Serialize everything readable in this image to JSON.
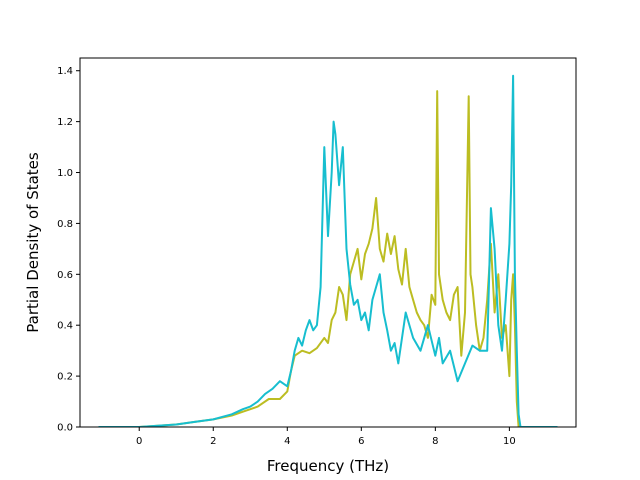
{
  "chart_data": {
    "type": "line",
    "title": "",
    "xlabel": "Frequency (THz)",
    "ylabel": "Partial Density of States",
    "xlim": [
      -1.6,
      11.8
    ],
    "ylim": [
      0,
      1.45
    ],
    "xticks": [
      0,
      2,
      4,
      6,
      8,
      10
    ],
    "yticks": [
      0.0,
      0.2,
      0.4,
      0.6,
      0.8,
      1.0,
      1.2,
      1.4
    ],
    "xtick_labels": [
      "0",
      "2",
      "4",
      "6",
      "8",
      "10"
    ],
    "ytick_labels": [
      "0.0",
      "0.2",
      "0.4",
      "0.6",
      "0.8",
      "1.0",
      "1.2",
      "1.4"
    ],
    "grid": false,
    "legend": "none",
    "series": [
      {
        "color": "#bcbd22",
        "x": [
          -1.1,
          0.0,
          0.5,
          1.0,
          1.5,
          2.0,
          2.5,
          2.8,
          3.0,
          3.2,
          3.5,
          3.8,
          4.0,
          4.1,
          4.2,
          4.4,
          4.6,
          4.8,
          5.0,
          5.1,
          5.2,
          5.3,
          5.4,
          5.5,
          5.6,
          5.7,
          5.8,
          5.9,
          6.0,
          6.1,
          6.2,
          6.3,
          6.4,
          6.5,
          6.6,
          6.7,
          6.8,
          6.9,
          7.0,
          7.1,
          7.2,
          7.3,
          7.4,
          7.5,
          7.6,
          7.7,
          7.8,
          7.9,
          8.0,
          8.05,
          8.1,
          8.2,
          8.3,
          8.4,
          8.5,
          8.6,
          8.7,
          8.8,
          8.9,
          8.95,
          9.0,
          9.1,
          9.2,
          9.3,
          9.4,
          9.5,
          9.6,
          9.7,
          9.8,
          9.9,
          10.0,
          10.05,
          10.1,
          10.15,
          10.2,
          10.25,
          10.3,
          11.3
        ],
        "y": [
          0.0,
          0.0,
          0.005,
          0.01,
          0.02,
          0.03,
          0.045,
          0.06,
          0.07,
          0.08,
          0.11,
          0.11,
          0.14,
          0.22,
          0.28,
          0.3,
          0.29,
          0.31,
          0.35,
          0.33,
          0.42,
          0.45,
          0.55,
          0.52,
          0.42,
          0.6,
          0.65,
          0.7,
          0.58,
          0.68,
          0.72,
          0.78,
          0.9,
          0.7,
          0.65,
          0.76,
          0.68,
          0.75,
          0.62,
          0.56,
          0.7,
          0.55,
          0.5,
          0.45,
          0.42,
          0.4,
          0.35,
          0.52,
          0.48,
          1.32,
          0.6,
          0.5,
          0.45,
          0.42,
          0.52,
          0.55,
          0.28,
          0.45,
          1.3,
          0.6,
          0.55,
          0.4,
          0.3,
          0.35,
          0.5,
          0.72,
          0.45,
          0.6,
          0.35,
          0.4,
          0.2,
          0.5,
          0.6,
          0.4,
          0.1,
          0.0,
          0.0,
          0.0
        ]
      },
      {
        "color": "#17becf",
        "x": [
          -1.1,
          0.0,
          0.5,
          1.0,
          1.5,
          2.0,
          2.5,
          2.8,
          3.0,
          3.2,
          3.4,
          3.6,
          3.8,
          4.0,
          4.1,
          4.2,
          4.3,
          4.4,
          4.5,
          4.6,
          4.7,
          4.8,
          4.9,
          5.0,
          5.1,
          5.2,
          5.25,
          5.3,
          5.4,
          5.5,
          5.6,
          5.7,
          5.8,
          5.9,
          6.0,
          6.1,
          6.2,
          6.3,
          6.4,
          6.5,
          6.6,
          6.7,
          6.8,
          6.9,
          7.0,
          7.2,
          7.4,
          7.6,
          7.8,
          8.0,
          8.1,
          8.2,
          8.4,
          8.6,
          8.8,
          9.0,
          9.2,
          9.4,
          9.5,
          9.6,
          9.7,
          9.8,
          9.9,
          10.0,
          10.05,
          10.1,
          10.15,
          10.2,
          10.25,
          10.3,
          11.3
        ],
        "y": [
          0.0,
          0.0,
          0.005,
          0.01,
          0.02,
          0.03,
          0.05,
          0.07,
          0.08,
          0.1,
          0.13,
          0.15,
          0.18,
          0.16,
          0.22,
          0.3,
          0.35,
          0.32,
          0.38,
          0.42,
          0.38,
          0.4,
          0.55,
          1.1,
          0.75,
          1.0,
          1.2,
          1.15,
          0.95,
          1.1,
          0.7,
          0.56,
          0.48,
          0.5,
          0.42,
          0.45,
          0.38,
          0.5,
          0.55,
          0.6,
          0.45,
          0.38,
          0.3,
          0.33,
          0.25,
          0.45,
          0.35,
          0.3,
          0.4,
          0.28,
          0.35,
          0.25,
          0.3,
          0.18,
          0.25,
          0.32,
          0.3,
          0.3,
          0.86,
          0.7,
          0.4,
          0.3,
          0.5,
          0.72,
          0.95,
          1.38,
          0.6,
          0.3,
          0.05,
          0.0,
          0.0
        ]
      }
    ]
  }
}
